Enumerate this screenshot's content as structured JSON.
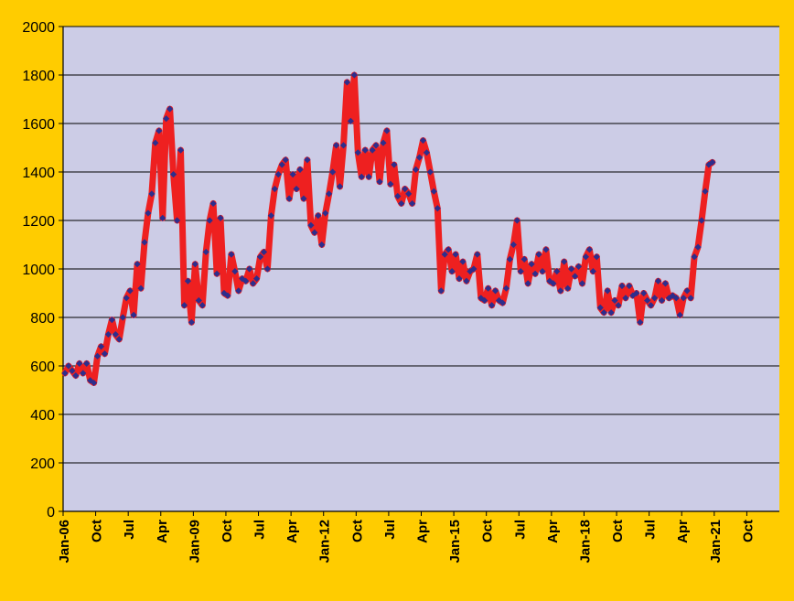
{
  "colors": {
    "page_background": "#FFCC00",
    "plot_background": "#CCCCE6",
    "gridline": "#000000",
    "series_line": "#EE2020",
    "marker": "#2E2E8C",
    "text": "#000000"
  },
  "chart_data": {
    "type": "line",
    "title": "",
    "xlabel": "",
    "ylabel": "",
    "ylim": [
      0,
      2000
    ],
    "y_ticks": [
      0,
      200,
      400,
      600,
      800,
      1000,
      1200,
      1400,
      1600,
      1800,
      2000
    ],
    "x_tick_labels": [
      "Jan-06",
      "Oct",
      "Jul",
      "Apr",
      "Jan-09",
      "Oct",
      "Jul",
      "Apr",
      "Jan-12",
      "Oct",
      "Jul",
      "Apr",
      "Jan-15",
      "Oct",
      "Jul",
      "Apr",
      "Jan-18",
      "Oct",
      "Jul",
      "Apr",
      "Jan-21",
      "Oct"
    ],
    "grid": true,
    "legend": "none",
    "marker": "diamond",
    "series": [
      {
        "values": [
          570,
          600,
          580,
          560,
          610,
          570,
          610,
          540,
          530,
          640,
          680,
          650,
          730,
          790,
          730,
          710,
          800,
          880,
          910,
          810,
          1020,
          920,
          1110,
          1230,
          1310,
          1520,
          1570,
          1210,
          1620,
          1660,
          1390,
          1200,
          1490,
          850,
          950,
          780,
          1020,
          870,
          850,
          1070,
          1200,
          1270,
          980,
          1210,
          900,
          890,
          1060,
          990,
          910,
          960,
          950,
          1000,
          940,
          960,
          1050,
          1070,
          1000,
          1220,
          1330,
          1390,
          1430,
          1450,
          1290,
          1390,
          1330,
          1410,
          1290,
          1450,
          1180,
          1150,
          1220,
          1100,
          1230,
          1310,
          1400,
          1510,
          1340,
          1510,
          1770,
          1610,
          1800,
          1480,
          1380,
          1490,
          1380,
          1490,
          1510,
          1360,
          1520,
          1570,
          1350,
          1430,
          1300,
          1270,
          1330,
          1310,
          1270,
          1410,
          1460,
          1530,
          1480,
          1400,
          1320,
          1250,
          910,
          1060,
          1080,
          990,
          1060,
          960,
          1030,
          950,
          990,
          1000,
          1060,
          880,
          870,
          920,
          850,
          910,
          870,
          860,
          920,
          1040,
          1100,
          1200,
          990,
          1040,
          940,
          1020,
          980,
          1060,
          990,
          1080,
          950,
          940,
          990,
          910,
          1030,
          920,
          1000,
          970,
          1010,
          940,
          1050,
          1080,
          990,
          1050,
          840,
          820,
          910,
          820,
          870,
          850,
          930,
          880,
          930,
          890,
          900,
          780,
          900,
          870,
          850,
          880,
          950,
          870,
          940,
          880,
          890,
          880,
          810,
          880,
          910,
          880,
          1050,
          1090,
          1200,
          1320,
          1430,
          1440
        ]
      }
    ]
  }
}
